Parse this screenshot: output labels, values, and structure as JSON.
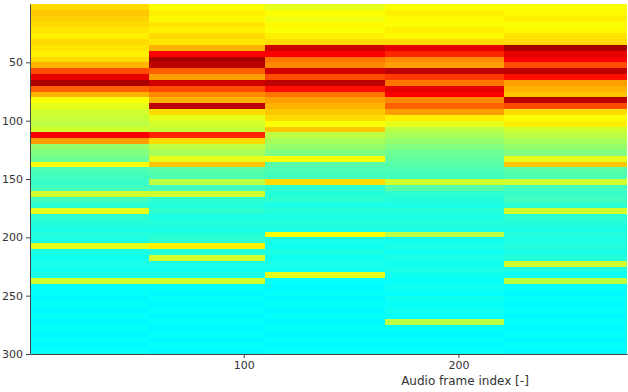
{
  "chart_data": {
    "type": "heatmap",
    "x_label": "Audio frame index [-]",
    "xlim": [
      0.5,
      278.5
    ],
    "xticks": [
      100,
      200
    ],
    "ylim": [
      0,
      300
    ],
    "yticks": [
      50,
      100,
      150,
      200,
      250,
      300
    ],
    "zlim": [
      0,
      100
    ],
    "x_edges": [
      0.5,
      56,
      110,
      166,
      221,
      278.5
    ],
    "y_edges": [
      0,
      5,
      10,
      15,
      20,
      25,
      30,
      35,
      40,
      45,
      50,
      55,
      60,
      65,
      70,
      75,
      80,
      85,
      90,
      95,
      100,
      105,
      110,
      115,
      120,
      125,
      130,
      135,
      140,
      145,
      150,
      155,
      160,
      165,
      170,
      175,
      180,
      185,
      190,
      195,
      200,
      205,
      210,
      215,
      220,
      225,
      230,
      235,
      240,
      245,
      250,
      255,
      260,
      265,
      270,
      275,
      280,
      285,
      290,
      295,
      300
    ],
    "cells": [
      [
        66,
        68,
        67,
        66,
        65,
        64,
        66,
        65,
        64,
        66,
        70,
        80,
        90,
        96,
        78,
        70,
        62,
        60,
        58,
        57,
        56,
        58,
        88,
        72,
        52,
        50,
        48,
        62,
        45,
        44,
        43,
        44,
        58,
        44,
        42,
        60,
        42,
        41,
        40,
        41,
        40,
        60,
        40,
        39,
        40,
        39,
        40,
        58,
        38,
        38,
        37,
        38,
        37,
        38,
        37,
        38,
        37,
        38,
        37,
        38
      ],
      [
        62,
        64,
        63,
        65,
        64,
        66,
        65,
        70,
        88,
        96,
        94,
        78,
        72,
        92,
        80,
        74,
        70,
        94,
        66,
        60,
        58,
        57,
        84,
        66,
        56,
        54,
        60,
        68,
        46,
        45,
        56,
        44,
        58,
        42,
        41,
        42,
        40,
        41,
        40,
        41,
        42,
        64,
        41,
        58,
        40,
        39,
        40,
        58,
        38,
        37,
        38,
        37,
        38,
        37,
        38,
        37,
        38,
        37,
        38,
        37
      ],
      [
        60,
        62,
        61,
        63,
        62,
        64,
        66,
        92,
        88,
        76,
        74,
        92,
        80,
        94,
        86,
        76,
        72,
        70,
        68,
        66,
        62,
        68,
        56,
        54,
        52,
        50,
        62,
        46,
        45,
        44,
        66,
        42,
        41,
        42,
        40,
        41,
        40,
        41,
        40,
        62,
        40,
        39,
        40,
        39,
        40,
        39,
        60,
        38,
        37,
        38,
        37,
        38,
        37,
        38,
        37,
        38,
        37,
        38,
        37,
        38
      ],
      [
        62,
        64,
        63,
        62,
        64,
        63,
        66,
        90,
        84,
        74,
        72,
        94,
        82,
        76,
        90,
        88,
        74,
        78,
        72,
        64,
        60,
        56,
        54,
        52,
        50,
        48,
        47,
        46,
        45,
        44,
        58,
        46,
        42,
        41,
        40,
        41,
        40,
        41,
        40,
        56,
        39,
        40,
        39,
        40,
        39,
        40,
        39,
        38,
        39,
        38,
        39,
        38,
        39,
        38,
        56,
        38,
        37,
        38,
        37,
        38
      ],
      [
        62,
        63,
        64,
        62,
        63,
        65,
        66,
        96,
        90,
        88,
        80,
        94,
        86,
        72,
        70,
        68,
        94,
        80,
        66,
        62,
        64,
        58,
        56,
        54,
        52,
        50,
        60,
        68,
        46,
        45,
        58,
        44,
        43,
        44,
        42,
        58,
        42,
        41,
        40,
        41,
        40,
        41,
        40,
        41,
        58,
        40,
        39,
        56,
        38,
        37,
        38,
        37,
        38,
        37,
        38,
        37,
        38,
        37,
        38,
        37
      ]
    ]
  }
}
